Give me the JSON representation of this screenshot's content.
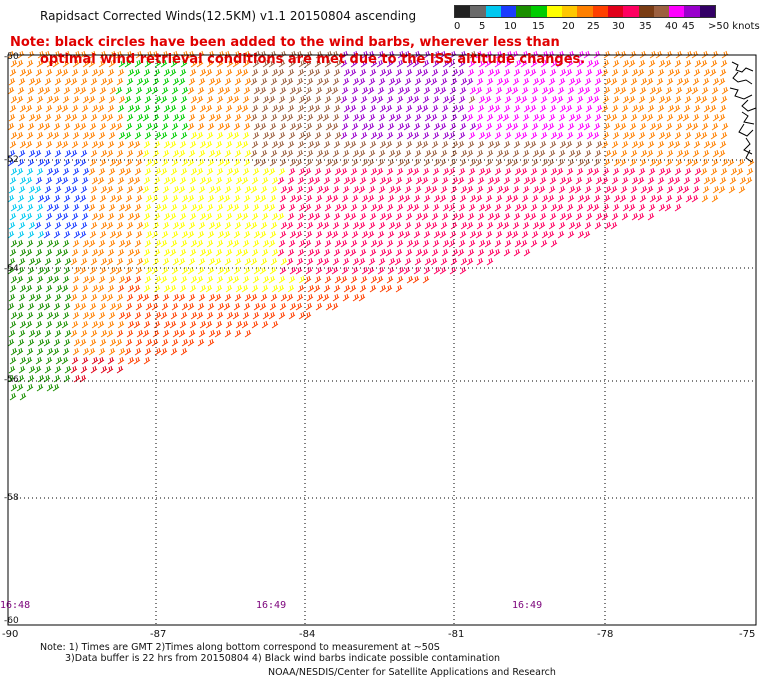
{
  "title": "Rapidsact Corrected Winds(12.5KM) v1.1 20150804 ascending",
  "legend": {
    "labels": [
      "0",
      "5",
      "10",
      "15",
      "20",
      "25",
      "30",
      "35",
      "40",
      "45",
      ">50 knots"
    ],
    "colors": [
      "#222222",
      "#6a6a6a",
      "#00c8f0",
      "#1a3cff",
      "#1a8f00",
      "#00cc00",
      "#ffff00",
      "#ffc800",
      "#ff8000",
      "#ff4000",
      "#e0001a",
      "#ff0060",
      "#7a3c14",
      "#9c6040",
      "#ff00ff",
      "#9900cc",
      "#330066"
    ]
  },
  "note": {
    "line1": "Note: black circles have been added to the wind barbs, wherever less than",
    "line2": "optimal wind retrieval conditions are met due to the ISS altitude changes."
  },
  "axes": {
    "lon_ticks": [
      "-90",
      "-87",
      "-84",
      "-81",
      "-78",
      "-75"
    ],
    "lat_ticks": [
      "-50",
      "-52",
      "-54",
      "-56",
      "-58",
      "-60"
    ]
  },
  "times": [
    "16:48",
    "16:49",
    "16:49"
  ],
  "footnote": {
    "line1": "Note: 1) Times are GMT 2)Times along bottom correspond to measurement at ~50S",
    "line2": "3)Data buffer is 22 hrs from 20150804 4) Black wind barbs indicate possible contamination"
  },
  "credit": "NOAA/NESDIS/Center for Satellite Applications and Research"
}
